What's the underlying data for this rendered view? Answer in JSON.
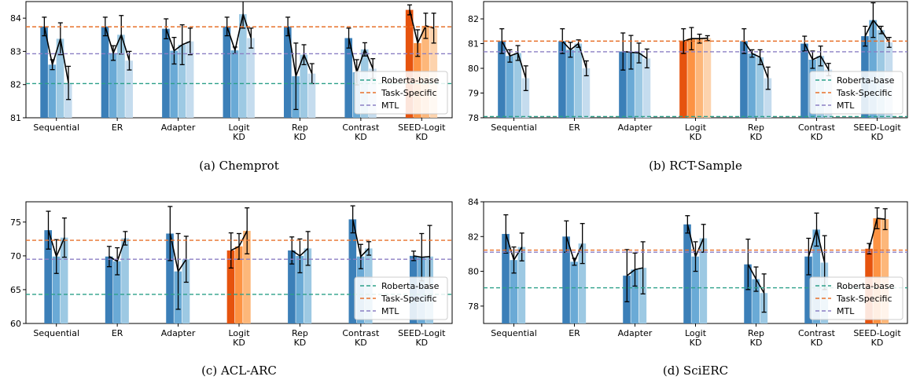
{
  "colors": {
    "blue_shades": [
      "#3b7fb8",
      "#6aaad6",
      "#9dc9e3",
      "#c5dcee"
    ],
    "orange_shades": [
      "#e6530e",
      "#fd9343",
      "#fdb77a",
      "#fdd3ad"
    ],
    "roberta": "#2ca089",
    "task_specific": "#e8702a",
    "mtl": "#8b7fc4",
    "trend": "#000000",
    "error": "#000000"
  },
  "categories": [
    "Sequential",
    "ER",
    "Adapter",
    "Logit\nKD",
    "Rep\nKD",
    "Contrast\nKD",
    "SEED-Logit\nKD"
  ],
  "legend": [
    "Roberta-base",
    "Task-Specific",
    "MTL"
  ],
  "chart_data": [
    {
      "type": "bar",
      "caption_prefix": "(a)",
      "caption": "Chemprot",
      "ylim": [
        81,
        84.5
      ],
      "yticks": [
        81,
        82,
        83,
        84
      ],
      "highlight_index": 6,
      "lines": {
        "roberta": 82.03,
        "task_specific": 83.74,
        "mtl": 82.93
      },
      "groups": [
        {
          "values": [
            83.75,
            82.6,
            83.38,
            82.05
          ],
          "errors": [
            0.28,
            0.15,
            0.48,
            0.5
          ]
        },
        {
          "values": [
            83.75,
            82.95,
            83.5,
            82.72
          ],
          "errors": [
            0.28,
            0.22,
            0.58,
            0.28
          ]
        },
        {
          "values": [
            83.68,
            83.02,
            83.2,
            83.3
          ],
          "errors": [
            0.3,
            0.4,
            0.6,
            0.4
          ]
        },
        {
          "values": [
            83.75,
            83.03,
            84.12,
            83.4
          ],
          "errors": [
            0.28,
            0.1,
            0.42,
            0.3
          ]
        },
        {
          "values": [
            83.75,
            82.25,
            82.9,
            82.33
          ],
          "errors": [
            0.28,
            1.0,
            0.3,
            0.3
          ]
        },
        {
          "values": [
            83.4,
            82.37,
            83.06,
            82.48
          ],
          "errors": [
            0.3,
            0.38,
            0.2,
            0.3
          ]
        },
        {
          "values": [
            84.25,
            83.25,
            83.77,
            83.7
          ],
          "errors": [
            0.15,
            0.4,
            0.38,
            0.45
          ]
        }
      ]
    },
    {
      "type": "bar",
      "caption_prefix": "(b)",
      "caption": "RCT-Sample",
      "ylim": [
        78,
        82.7
      ],
      "yticks": [
        78,
        79,
        80,
        81,
        82
      ],
      "highlight_index": 3,
      "lines": {
        "roberta": 78.05,
        "task_specific": 81.1,
        "mtl": 80.67
      },
      "groups": [
        {
          "values": [
            81.1,
            80.5,
            80.62,
            79.6
          ],
          "errors": [
            0.5,
            0.25,
            0.3,
            0.5
          ]
        },
        {
          "values": [
            81.1,
            80.75,
            81.0,
            80.0
          ],
          "errors": [
            0.5,
            0.3,
            0.15,
            0.3
          ]
        },
        {
          "values": [
            80.68,
            80.65,
            80.62,
            80.4
          ],
          "errors": [
            0.75,
            0.68,
            0.4,
            0.38
          ]
        },
        {
          "values": [
            81.1,
            81.2,
            81.2,
            81.22
          ],
          "errors": [
            0.5,
            0.45,
            0.18,
            0.1
          ]
        },
        {
          "values": [
            81.1,
            80.6,
            80.45,
            79.6
          ],
          "errors": [
            0.5,
            0.15,
            0.3,
            0.45
          ]
        },
        {
          "values": [
            81.0,
            80.35,
            80.5,
            79.95
          ],
          "errors": [
            0.3,
            0.35,
            0.4,
            0.25
          ]
        },
        {
          "values": [
            81.3,
            81.95,
            81.55,
            81.05
          ],
          "errors": [
            0.4,
            0.7,
            0.15,
            0.2
          ]
        }
      ]
    },
    {
      "type": "bar",
      "caption_prefix": "(c)",
      "caption": "ACL-ARC",
      "ylim": [
        60,
        78
      ],
      "yticks": [
        60,
        65,
        70,
        75
      ],
      "highlight_index": 3,
      "lines": {
        "roberta": 64.3,
        "task_specific": 72.3,
        "mtl": 69.5
      },
      "groups": [
        {
          "values": [
            73.8,
            69.9,
            72.7
          ],
          "errors": [
            2.8,
            2.5,
            2.9
          ]
        },
        {
          "values": [
            69.9,
            69.2,
            72.6
          ],
          "errors": [
            1.5,
            2.0,
            1.0
          ]
        },
        {
          "values": [
            73.3,
            67.7,
            69.5
          ],
          "errors": [
            4.0,
            5.6,
            3.4
          ]
        },
        {
          "values": [
            70.8,
            71.4,
            73.7
          ],
          "errors": [
            2.6,
            1.9,
            3.4
          ]
        },
        {
          "values": [
            70.8,
            70.0,
            71.1
          ],
          "errors": [
            2.0,
            2.5,
            2.5
          ]
        },
        {
          "values": [
            75.4,
            69.9,
            71.1
          ],
          "errors": [
            2.0,
            1.8,
            1.0
          ]
        },
        {
          "values": [
            70.0,
            69.8,
            69.9
          ],
          "errors": [
            0.7,
            3.5,
            4.6
          ]
        }
      ]
    },
    {
      "type": "bar",
      "caption_prefix": "(d)",
      "caption": "SciERC",
      "ylim": [
        77,
        84
      ],
      "yticks": [
        78,
        80,
        82,
        84
      ],
      "highlight_index": 6,
      "lines": {
        "roberta": 79.05,
        "task_specific": 81.22,
        "mtl": 81.1
      },
      "groups": [
        {
          "values": [
            82.15,
            80.65,
            81.4
          ],
          "errors": [
            1.1,
            0.75,
            0.8
          ]
        },
        {
          "values": [
            82.0,
            80.55,
            81.6
          ],
          "errors": [
            0.9,
            0.2,
            1.15
          ]
        },
        {
          "values": [
            79.75,
            80.1,
            80.2
          ],
          "errors": [
            1.5,
            0.95,
            1.5
          ]
        },
        {
          "values": [
            82.7,
            80.85,
            81.9
          ],
          "errors": [
            0.5,
            0.85,
            0.8
          ]
        },
        {
          "values": [
            80.4,
            79.55,
            78.75
          ],
          "errors": [
            1.45,
            0.7,
            1.1
          ]
        },
        {
          "values": [
            80.85,
            82.4,
            80.5
          ],
          "errors": [
            1.05,
            0.95,
            1.55
          ]
        },
        {
          "values": [
            81.3,
            83.05,
            83.0
          ],
          "errors": [
            0.3,
            0.6,
            0.6
          ]
        }
      ]
    }
  ]
}
